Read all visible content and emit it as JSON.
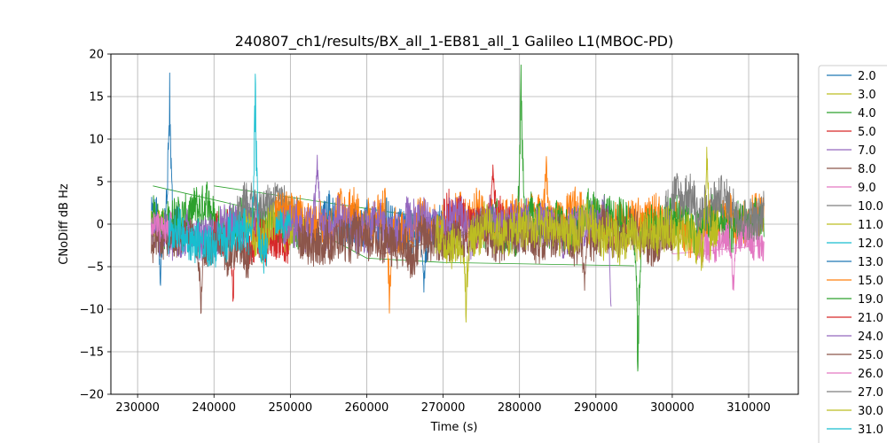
{
  "chart_data": {
    "type": "line",
    "title": "240807_ch1/results/BX_all_1-EB81_all_1 Galileo L1(MBOC-PD)",
    "xlabel": "Time (s)",
    "ylabel": "CNoDiff dB Hz",
    "xlim": [
      226500,
      316500
    ],
    "ylim": [
      -20,
      20
    ],
    "xticks": [
      230000,
      240000,
      250000,
      260000,
      270000,
      280000,
      290000,
      300000,
      310000
    ],
    "yticks": [
      -20,
      -15,
      -10,
      -5,
      0,
      5,
      10,
      15,
      20
    ],
    "grid": true,
    "legend_position": "right, outside plot (cut off at bottom)",
    "series": [
      {
        "name": "2.0",
        "color": "#1f77b4",
        "x_range": [
          231800,
          235500
        ],
        "center": 0.5,
        "amp": 2.5,
        "spikes": [
          [
            234200,
            20
          ],
          [
            233000,
            -9.5
          ]
        ]
      },
      {
        "name": "3.0",
        "color": "#bcbd22",
        "x_range": [
          231800,
          233500
        ],
        "center": 0.0,
        "amp": 2.0,
        "spikes": []
      },
      {
        "name": "4.0",
        "color": "#2ca02c",
        "x_range": [
          231800,
          251000
        ],
        "center": 0.5,
        "amp": 2.5,
        "spikes": []
      },
      {
        "name": "5.0",
        "color": "#d62728",
        "x_range": [
          240000,
          250000
        ],
        "center": -2.0,
        "amp": 2.5,
        "spikes": [
          [
            242500,
            -10.5
          ]
        ]
      },
      {
        "name": "7.0",
        "color": "#9467bd",
        "x_range": [
          231800,
          246000
        ],
        "center": -1.0,
        "amp": 2.5,
        "spikes": []
      },
      {
        "name": "8.0",
        "color": "#8c564b",
        "x_range": [
          231800,
          245000
        ],
        "center": -2.5,
        "amp": 2.0,
        "spikes": [
          [
            238300,
            -11
          ]
        ]
      },
      {
        "name": "9.0",
        "color": "#e377c2",
        "x_range": [
          231800,
          234500
        ],
        "center": 0.0,
        "amp": 1.5,
        "spikes": []
      },
      {
        "name": "10.0",
        "color": "#7f7f7f",
        "x_range": [
          243000,
          251000
        ],
        "center": 2.0,
        "amp": 2.0,
        "spikes": []
      },
      {
        "name": "11.0",
        "color": "#bcbd22",
        "x_range": [
          244000,
          252000
        ],
        "center": 0.0,
        "amp": 2.5,
        "spikes": []
      },
      {
        "name": "12.0",
        "color": "#17becf",
        "x_range": [
          234000,
          247000
        ],
        "center": -1.5,
        "amp": 2.5,
        "spikes": [
          [
            245400,
            20
          ]
        ]
      },
      {
        "name": "13.0",
        "color": "#1f77b4",
        "x_range": [
          254000,
          271000
        ],
        "center": 0.0,
        "amp": 2.5,
        "spikes": [
          [
            267500,
            -8.5
          ]
        ]
      },
      {
        "name": "15.0",
        "color": "#ff7f0e",
        "x_range": [
          248000,
          312000
        ],
        "center": 0.5,
        "amp": 2.5,
        "spikes": [
          [
            263000,
            -13
          ],
          [
            283500,
            8.5
          ]
        ]
      },
      {
        "name": "19.0",
        "color": "#2ca02c",
        "x_range": [
          275000,
          312000
        ],
        "center": 0.0,
        "amp": 2.5,
        "spikes": [
          [
            280200,
            20
          ],
          [
            295500,
            -20
          ]
        ]
      },
      {
        "name": "21.0",
        "color": "#d62728",
        "x_range": [
          270000,
          279000
        ],
        "center": 0.5,
        "amp": 2.5,
        "spikes": [
          [
            276500,
            8.5
          ]
        ]
      },
      {
        "name": "24.0",
        "color": "#9467bd",
        "x_range": [
          249000,
          292000
        ],
        "center": 0.0,
        "amp": 2.5,
        "spikes": [
          [
            253500,
            10.5
          ],
          [
            292000,
            -12
          ]
        ]
      },
      {
        "name": "25.0",
        "color": "#8c564b",
        "x_range": [
          251000,
          300000
        ],
        "center": -1.5,
        "amp": 2.5,
        "spikes": [
          [
            288500,
            -9
          ]
        ]
      },
      {
        "name": "26.0",
        "color": "#e377c2",
        "x_range": [
          303000,
          312000
        ],
        "center": -2.0,
        "amp": 2.0,
        "spikes": [
          [
            308000,
            -9.5
          ]
        ]
      },
      {
        "name": "27.0",
        "color": "#7f7f7f",
        "x_range": [
          299000,
          312000
        ],
        "center": 2.0,
        "amp": 2.5,
        "spikes": []
      },
      {
        "name": "30.0",
        "color": "#bcbd22",
        "x_range": [
          269000,
          306000
        ],
        "center": -1.0,
        "amp": 2.5,
        "spikes": [
          [
            273000,
            -12.5
          ],
          [
            304500,
            12
          ]
        ]
      },
      {
        "name": "31.0",
        "color": "#17becf",
        "x_range": [
          248000,
          250000
        ],
        "center": 0.0,
        "amp": 1.5,
        "spikes": []
      }
    ],
    "connectors": [
      {
        "series": "4.0",
        "points": [
          [
            232000,
            4.5
          ],
          [
            250000,
            0.8
          ],
          [
            260000,
            -4.0
          ],
          [
            270000,
            -4.5
          ],
          [
            295000,
            -4.9
          ]
        ]
      },
      {
        "series": "7.0",
        "points": [
          [
            250000,
            1.0
          ],
          [
            270000,
            -1.5
          ],
          [
            280000,
            0.5
          ]
        ]
      },
      {
        "series": "25.0",
        "points": [
          [
            262000,
            -3.5
          ],
          [
            280000,
            0.3
          ]
        ]
      },
      {
        "series": "26.0",
        "points": [
          [
            300000,
            -3.5
          ],
          [
            312000,
            -2.5
          ]
        ]
      },
      {
        "series": "19.0",
        "points": [
          [
            240000,
            4.5
          ],
          [
            270000,
            0.5
          ]
        ]
      }
    ]
  }
}
